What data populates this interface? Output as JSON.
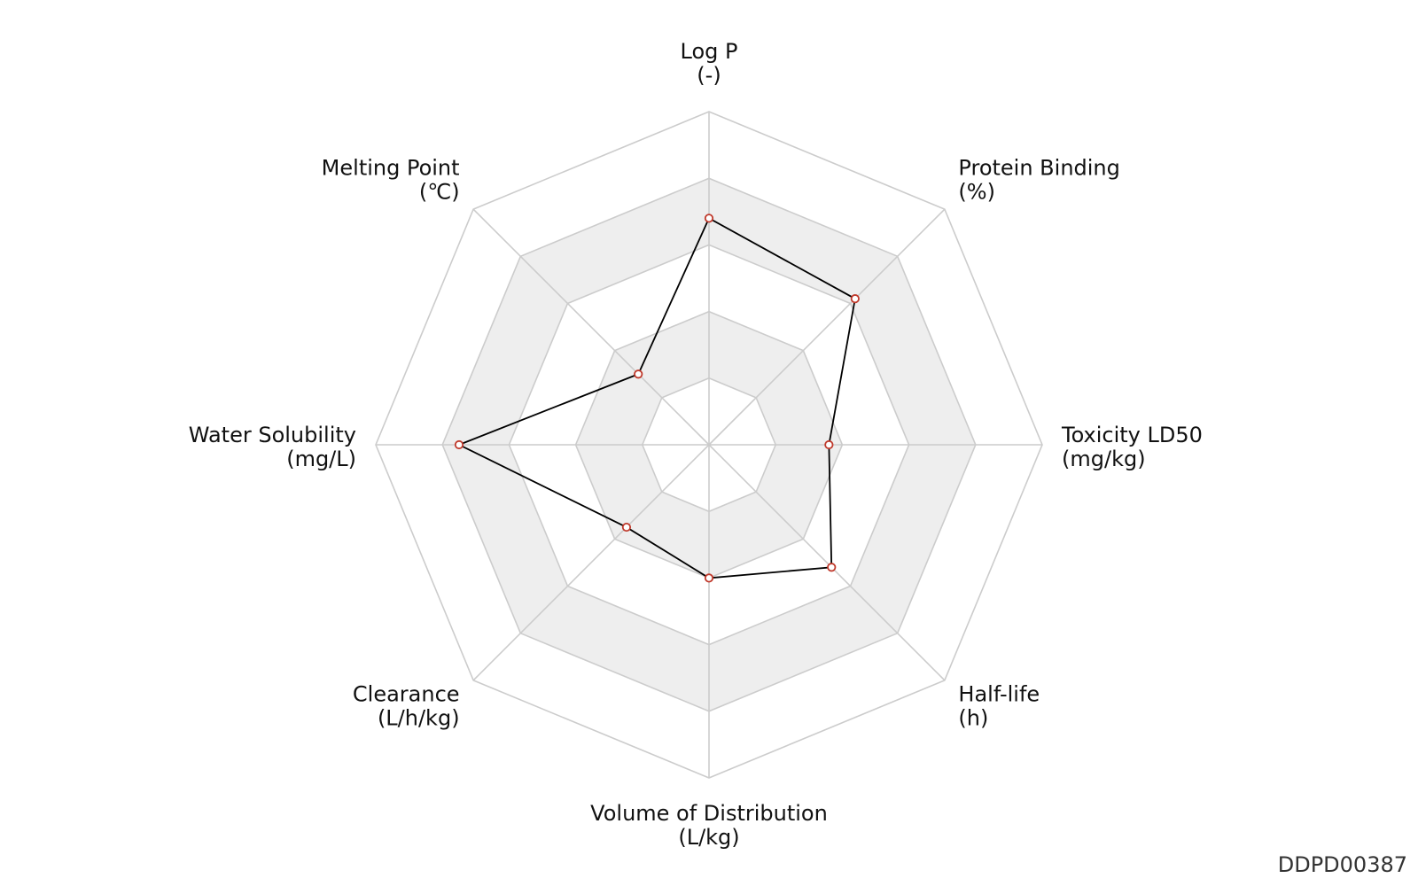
{
  "chart_data": {
    "type": "radar",
    "axes": [
      {
        "label": "Log P",
        "unit": "(-)"
      },
      {
        "label": "Protein Binding",
        "unit": "(%)"
      },
      {
        "label": "Toxicity LD50",
        "unit": "(mg/kg)"
      },
      {
        "label": "Half-life",
        "unit": "(h)"
      },
      {
        "label": "Volume of Distribution",
        "unit": "(L/kg)"
      },
      {
        "label": "Clearance",
        "unit": "(L/h/kg)"
      },
      {
        "label": "Water Solubility",
        "unit": "(mg/L)"
      },
      {
        "label": "Melting Point",
        "unit": "(℃)"
      }
    ],
    "values": [
      0.68,
      0.62,
      0.36,
      0.52,
      0.4,
      0.35,
      0.75,
      0.3
    ],
    "range": [
      0,
      1
    ],
    "rings": 5,
    "grid": true,
    "colors": {
      "grid_line": "#cccccc",
      "band_fill": "#eeeeee",
      "series_line": "#000000",
      "marker_edge": "#c0392b",
      "marker_fill": "#ffffff"
    }
  },
  "watermark": "DDPD00387"
}
